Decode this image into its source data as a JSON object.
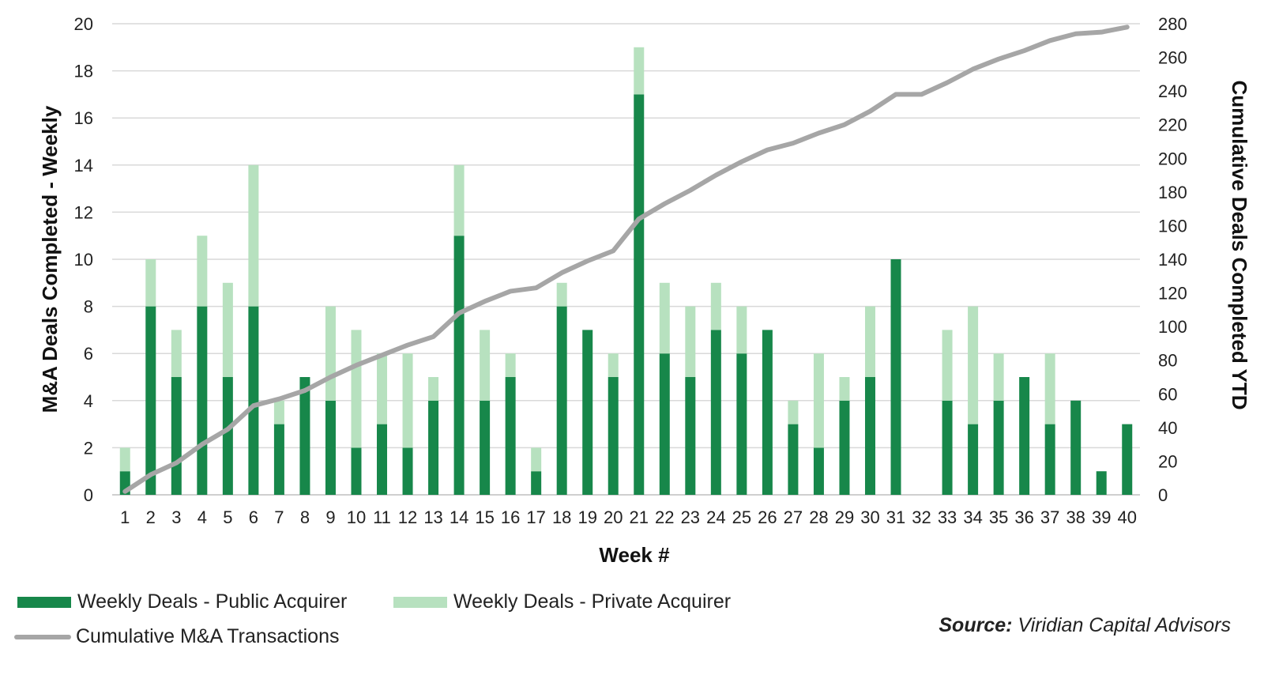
{
  "chart_data": {
    "type": "bar",
    "stacked": true,
    "categories": [
      "1",
      "2",
      "3",
      "4",
      "5",
      "6",
      "7",
      "8",
      "9",
      "10",
      "11",
      "12",
      "13",
      "14",
      "15",
      "16",
      "17",
      "18",
      "19",
      "20",
      "21",
      "22",
      "23",
      "24",
      "25",
      "26",
      "27",
      "28",
      "29",
      "30",
      "31",
      "32",
      "33",
      "34",
      "35",
      "36",
      "37",
      "38",
      "39",
      "40"
    ],
    "series": [
      {
        "name": "Weekly Deals - Public Acquirer",
        "type": "bar",
        "axis": "left",
        "color": "#17874a",
        "values": [
          1,
          8,
          5,
          8,
          5,
          8,
          3,
          5,
          4,
          2,
          3,
          2,
          4,
          11,
          4,
          5,
          1,
          8,
          7,
          5,
          17,
          6,
          5,
          7,
          6,
          7,
          3,
          2,
          4,
          5,
          10,
          0,
          4,
          3,
          4,
          5,
          3,
          4,
          1,
          3
        ]
      },
      {
        "name": "Weekly Deals - Private Acquirer",
        "type": "bar",
        "axis": "left",
        "color": "#b7e1bf",
        "values": [
          1,
          2,
          2,
          3,
          4,
          6,
          1,
          0,
          4,
          5,
          3,
          4,
          1,
          3,
          3,
          1,
          1,
          1,
          0,
          1,
          2,
          3,
          3,
          2,
          2,
          0,
          1,
          4,
          1,
          3,
          0,
          0,
          3,
          5,
          2,
          0,
          3,
          0,
          0,
          0
        ]
      },
      {
        "name": "Cumulative M&A Transactions",
        "type": "line",
        "axis": "right",
        "color": "#a6a6a6",
        "values": [
          2,
          12,
          19,
          30,
          39,
          53,
          57,
          62,
          70,
          77,
          83,
          89,
          94,
          108,
          115,
          121,
          123,
          132,
          139,
          145,
          164,
          173,
          181,
          190,
          198,
          205,
          209,
          215,
          220,
          228,
          238,
          238,
          245,
          253,
          259,
          264,
          270,
          274,
          275,
          278
        ]
      }
    ],
    "xlabel": "Week #",
    "ylabel": "M&A Deals Completed - Weekly",
    "y2label": "Cumulative Deals Completed YTD",
    "ylim": [
      0,
      20
    ],
    "y2lim": [
      0,
      280
    ],
    "yticks": [
      0,
      2,
      4,
      6,
      8,
      10,
      12,
      14,
      16,
      18,
      20
    ],
    "y2ticks": [
      0,
      20,
      40,
      60,
      80,
      100,
      120,
      140,
      160,
      180,
      200,
      220,
      240,
      260,
      280
    ],
    "grid": true,
    "legend_position": "bottom-left"
  },
  "source": {
    "label": "Source:",
    "text": "Viridian Capital Advisors"
  }
}
